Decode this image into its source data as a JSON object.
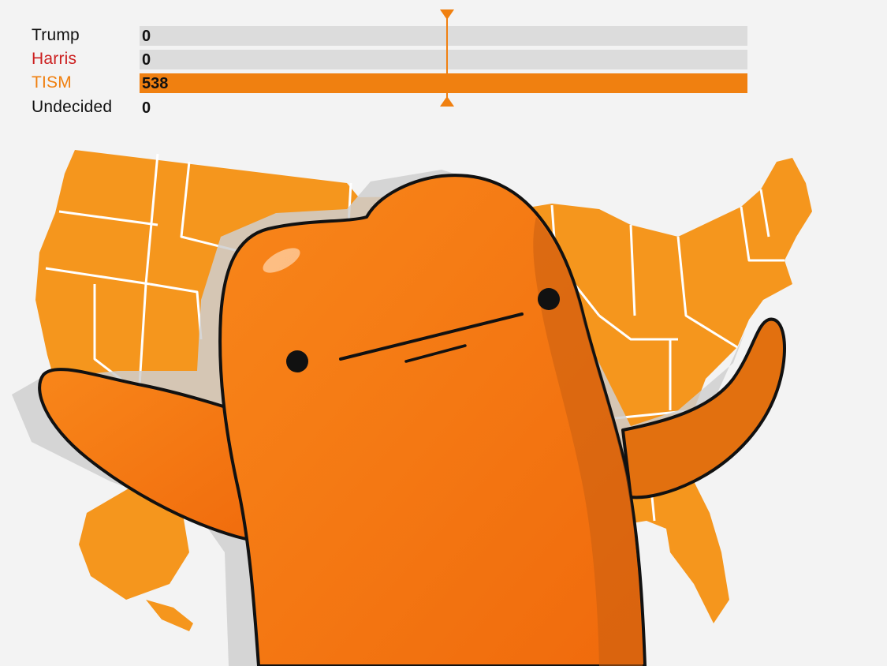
{
  "chart_data": {
    "type": "bar",
    "orientation": "horizontal",
    "categories": [
      "Trump",
      "Harris",
      "TISM",
      "Undecided"
    ],
    "values": [
      0,
      0,
      538,
      0
    ],
    "xlim": [
      0,
      538
    ],
    "category_colors": [
      "#111111",
      "#cc1f1f",
      "#f08010",
      "#111111"
    ],
    "bar_fill": "#f08010",
    "track_color": "#dcdcdc",
    "threshold_marker": "center"
  },
  "colors": {
    "background": "#f3f3f3",
    "map": "#f5961d",
    "map_borders": "#ffffff",
    "character_body": "#f47a14",
    "character_shadow": "#c95f10",
    "outline": "#111111",
    "drop_shadow": "#cfcfcf"
  },
  "illustration": {
    "subject": "orange-blob-character-hugging-us-map",
    "icons": [
      "usa-map-icon",
      "marker-triangle-icon"
    ]
  }
}
